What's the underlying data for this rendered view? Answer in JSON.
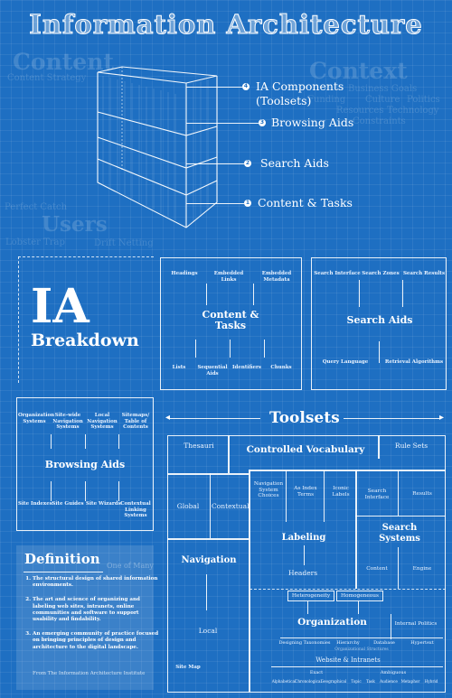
{
  "title": "Information Architecture",
  "background_words": {
    "content": "Content",
    "content_strategy": "Content Strategy",
    "context": "Context",
    "business_goals": "Business Goals",
    "funding": "Funding",
    "culture": "Culture",
    "politics": "Politics",
    "resources": "Resources",
    "technology": "Technology",
    "constraints": "Constraints",
    "perfect_catch": "Perfect Catch",
    "users": "Users",
    "lobster_trap": "Lobster Trap",
    "drift_netting": "Drift Netting"
  },
  "layers": [
    {
      "num": "4",
      "label": "IA Components"
    },
    {
      "num": "",
      "label": "(Toolsets)"
    },
    {
      "num": "3",
      "label": "Browsing Aids"
    },
    {
      "num": "2",
      "label": "Search Aids"
    },
    {
      "num": "1",
      "label": "Content & Tasks"
    }
  ],
  "breakdown": {
    "big": "IA",
    "sub": "Breakdown"
  },
  "content_tasks": {
    "title": "Content & Tasks",
    "top": [
      "Headings",
      "Embedded Links",
      "Embedded Metadata"
    ],
    "bottom": [
      "Lists",
      "Sequential Aids",
      "Identifiers",
      "Chunks"
    ]
  },
  "search_aids": {
    "title": "Search Aids",
    "top": [
      "Search Interface",
      "Search Zones",
      "Search Results"
    ],
    "bottom": [
      "Query Language",
      "Retrieval Algorithms"
    ]
  },
  "browsing_aids": {
    "title": "Browsing Aids",
    "top": [
      "Organization Systems",
      "Site-wide Navigation Systems",
      "Local Navigation Systems",
      "Sitemaps/ Table of Contents"
    ],
    "bottom": [
      "Site Indexes",
      "Site Guides",
      "Site Wizards",
      "Contextual Linking Systems"
    ]
  },
  "toolsets": {
    "heading": "Toolsets",
    "thesauri": "Thesauri",
    "controlled_vocabulary": "Controlled Vocabulary",
    "rule_sets": "Rule Sets",
    "global": "Global",
    "contextual": "Contextual",
    "navigation": "Navigation",
    "local": "Local",
    "site_map": "Site Map",
    "nav_system_choices": "Navigation System Choices",
    "as_index_terms": "As Index Terms",
    "iconic_labels": "Iconic Labels",
    "labeling": "Labeling",
    "headers": "Headers",
    "search_interface": "Search Interface",
    "results": "Results",
    "search_systems": "Search Systems",
    "content": "Content",
    "engine": "Engine",
    "heterogeneity": "Heterogeneity",
    "homogeneous": "Homogeneous",
    "organization": "Organization",
    "internal_politics": "Internal Politics",
    "designing_taxonomies": "Designing Taxonomies",
    "hierarchy": "Hierarchy",
    "database": "Database",
    "hypertext": "Hypertext",
    "organizational_structures": "Organizational Structures",
    "website_intranets": "Website & Intranets",
    "exact": "Exact",
    "ambiguous": "Ambiguous",
    "schemes": [
      "Alphabetical",
      "Chronological",
      "Geographical",
      "Topic",
      "Task",
      "Audience",
      "Metaphor",
      "Hybrid"
    ]
  },
  "definition": {
    "title": "Definition",
    "one_of_many": "One of Many",
    "items": [
      "The structural design of shared information environments.",
      "The art and science of organizing and labeling web sites, intranets, online communities and software to support usability and findability.",
      "An emerging community of practice focused on bringing principles of design and architecture to the digital landscape."
    ],
    "source": "From The Information Architecture Institute"
  }
}
